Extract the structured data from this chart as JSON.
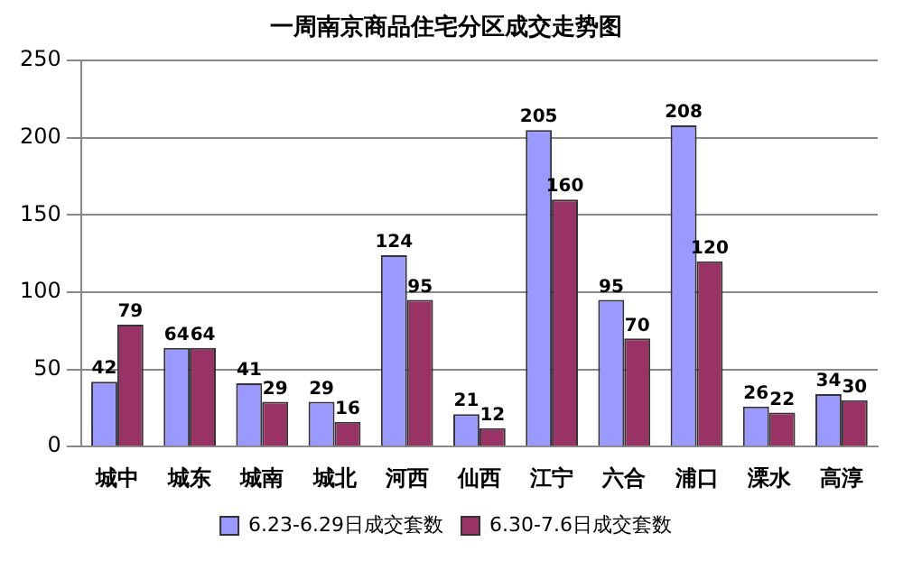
{
  "chart_data": {
    "type": "bar",
    "title": "一周南京商品住宅分区成交走势图",
    "categories": [
      "城中",
      "城东",
      "城南",
      "城北",
      "河西",
      "仙西",
      "江宁",
      "六合",
      "浦口",
      "溧水",
      "高淳"
    ],
    "series": [
      {
        "name": "6.23-6.29日成交套数",
        "color": "#9999ff",
        "values": [
          42,
          64,
          41,
          29,
          124,
          21,
          205,
          95,
          208,
          26,
          34
        ]
      },
      {
        "name": "6.30-7.6日成交套数",
        "color": "#993366",
        "values": [
          79,
          64,
          29,
          16,
          95,
          12,
          160,
          70,
          120,
          22,
          30
        ]
      }
    ],
    "ylim": [
      0,
      250
    ],
    "yticks": [
      0,
      50,
      100,
      150,
      200,
      250
    ],
    "grid": "y",
    "legend": "bottom",
    "data_labels": true
  }
}
